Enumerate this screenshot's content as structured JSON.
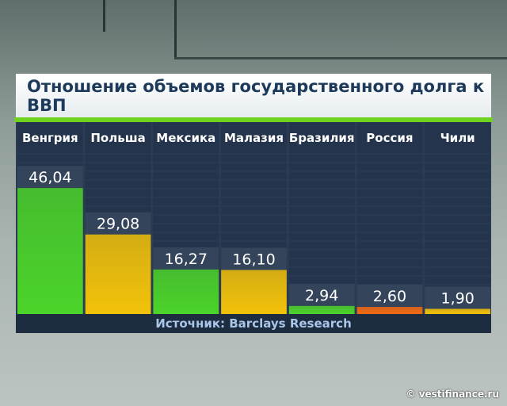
{
  "title": "Отношение объемов государственного долга к ВВП",
  "source": "Источник: Barclays Research",
  "watermark": "© vestifinance.ru",
  "chart_data": {
    "type": "bar",
    "title": "Отношение объемов государственного долга к ВВП",
    "categories": [
      "Венгрия",
      "Польша",
      "Мексика",
      "Малазия",
      "Бразилия",
      "Россия",
      "Чили"
    ],
    "values": [
      46.04,
      29.08,
      16.27,
      16.1,
      2.94,
      2.6,
      1.9
    ],
    "value_labels": [
      "46,04",
      "29,08",
      "16,27",
      "16,10",
      "2,94",
      "2,60",
      "1,90"
    ],
    "colors": [
      "#4cd42a",
      "#f2c20a",
      "#4cd42a",
      "#f2c20a",
      "#4cd42a",
      "#f26a14",
      "#f2c20a"
    ],
    "xlabel": "",
    "ylabel": "",
    "grid": false
  }
}
